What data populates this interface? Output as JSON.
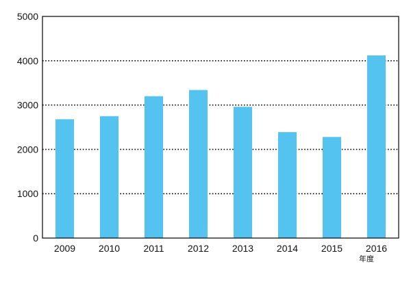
{
  "chart_data": {
    "type": "bar",
    "categories": [
      "2009",
      "2010",
      "2011",
      "2012",
      "2013",
      "2014",
      "2015",
      "2016"
    ],
    "values": [
      2680,
      2750,
      3200,
      3340,
      2960,
      2390,
      2280,
      4120
    ],
    "ylim": [
      0,
      5000
    ],
    "yticks": [
      0,
      1000,
      2000,
      3000,
      4000,
      5000
    ],
    "xunit": "年度",
    "grid": "horizontal-dotted",
    "bar_color": "#55C3F0",
    "axis_color": "#000000"
  }
}
